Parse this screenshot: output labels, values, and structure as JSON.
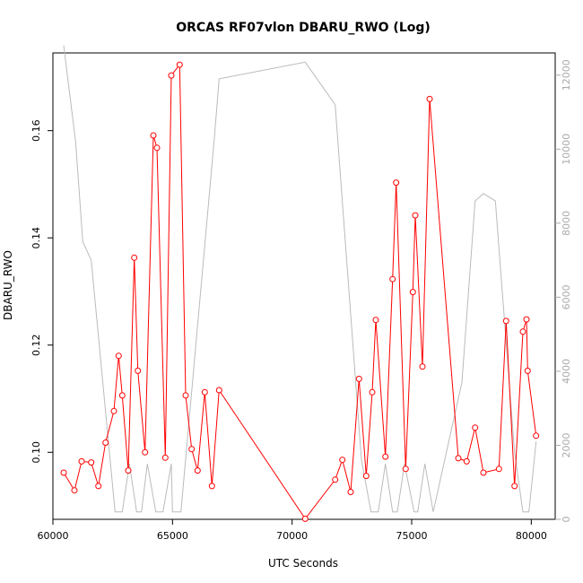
{
  "chart_data": {
    "type": "line",
    "title": "ORCAS RF07vlon DBARU_RWO (Log)",
    "xlabel": "UTC Seconds",
    "ylabel": "DBARU_RWO",
    "xlim": [
      60000,
      81000
    ],
    "ylim": [
      0.0875,
      0.1745
    ],
    "y2lim": [
      0,
      12600
    ],
    "x_ticks": [
      60000,
      65000,
      70000,
      75000,
      80000
    ],
    "y_ticks": [
      0.1,
      0.12,
      0.14,
      0.16
    ],
    "y2_ticks": [
      0,
      2000,
      4000,
      6000,
      8000,
      10000,
      12000
    ],
    "series": [
      {
        "color": "#ff0000",
        "axis": "left",
        "markers": "open-circle",
        "points": [
          [
            60450,
            0.0962
          ],
          [
            60900,
            0.0929
          ],
          [
            61200,
            0.0983
          ],
          [
            61600,
            0.0981
          ],
          [
            61900,
            0.0937
          ],
          [
            62200,
            0.1018
          ],
          [
            62550,
            0.1077
          ],
          [
            62750,
            0.118
          ],
          [
            62900,
            0.1106
          ],
          [
            63150,
            0.0966
          ],
          [
            63400,
            0.1363
          ],
          [
            63550,
            0.1152
          ],
          [
            63850,
            0.1
          ],
          [
            64200,
            0.1591
          ],
          [
            64350,
            0.1568
          ],
          [
            64700,
            0.099
          ],
          [
            64950,
            0.1703
          ],
          [
            65300,
            0.1723
          ],
          [
            65550,
            0.1106
          ],
          [
            65800,
            0.1006
          ],
          [
            66050,
            0.0966
          ],
          [
            66350,
            0.1112
          ],
          [
            66650,
            0.0937
          ],
          [
            66950,
            0.1116
          ],
          [
            70550,
            0.0876
          ],
          [
            71800,
            0.0949
          ],
          [
            72100,
            0.0986
          ],
          [
            72450,
            0.0926
          ],
          [
            72800,
            0.1137
          ],
          [
            73100,
            0.0956
          ],
          [
            73350,
            0.1112
          ],
          [
            73500,
            0.1247
          ],
          [
            73900,
            0.0992
          ],
          [
            74200,
            0.1323
          ],
          [
            74350,
            0.1503
          ],
          [
            74750,
            0.0969
          ],
          [
            75050,
            0.1299
          ],
          [
            75150,
            0.1442
          ],
          [
            75450,
            0.116
          ],
          [
            75750,
            0.1659
          ],
          [
            76950,
            0.0989
          ],
          [
            77300,
            0.0983
          ],
          [
            77650,
            0.1046
          ],
          [
            78000,
            0.0962
          ],
          [
            78650,
            0.0969
          ],
          [
            78950,
            0.1245
          ],
          [
            79300,
            0.0937
          ],
          [
            79650,
            0.1225
          ],
          [
            79800,
            0.1248
          ],
          [
            79850,
            0.1152
          ],
          [
            80200,
            0.1031
          ]
        ]
      },
      {
        "color": "#bbbbbb",
        "axis": "right",
        "markers": "none",
        "points": [
          [
            60450,
            12800
          ],
          [
            60950,
            10200
          ],
          [
            61250,
            7500
          ],
          [
            61600,
            7000
          ],
          [
            62600,
            200
          ],
          [
            62900,
            200
          ],
          [
            63200,
            1500
          ],
          [
            63500,
            200
          ],
          [
            63700,
            200
          ],
          [
            63950,
            1500
          ],
          [
            64300,
            200
          ],
          [
            64600,
            200
          ],
          [
            64950,
            1500
          ],
          [
            65000,
            200
          ],
          [
            65350,
            200
          ],
          [
            66750,
            10300
          ],
          [
            66950,
            11900
          ],
          [
            70550,
            12350
          ],
          [
            71800,
            11200
          ],
          [
            72900,
            1600
          ],
          [
            73300,
            200
          ],
          [
            73600,
            200
          ],
          [
            73900,
            1500
          ],
          [
            74200,
            200
          ],
          [
            74400,
            200
          ],
          [
            74700,
            1500
          ],
          [
            75100,
            200
          ],
          [
            75250,
            200
          ],
          [
            75550,
            1500
          ],
          [
            75900,
            200
          ],
          [
            77100,
            3700
          ],
          [
            77650,
            8600
          ],
          [
            78000,
            8800
          ],
          [
            78500,
            8600
          ],
          [
            79300,
            1800
          ],
          [
            79650,
            200
          ],
          [
            79900,
            200
          ],
          [
            80200,
            2100
          ]
        ]
      }
    ]
  }
}
